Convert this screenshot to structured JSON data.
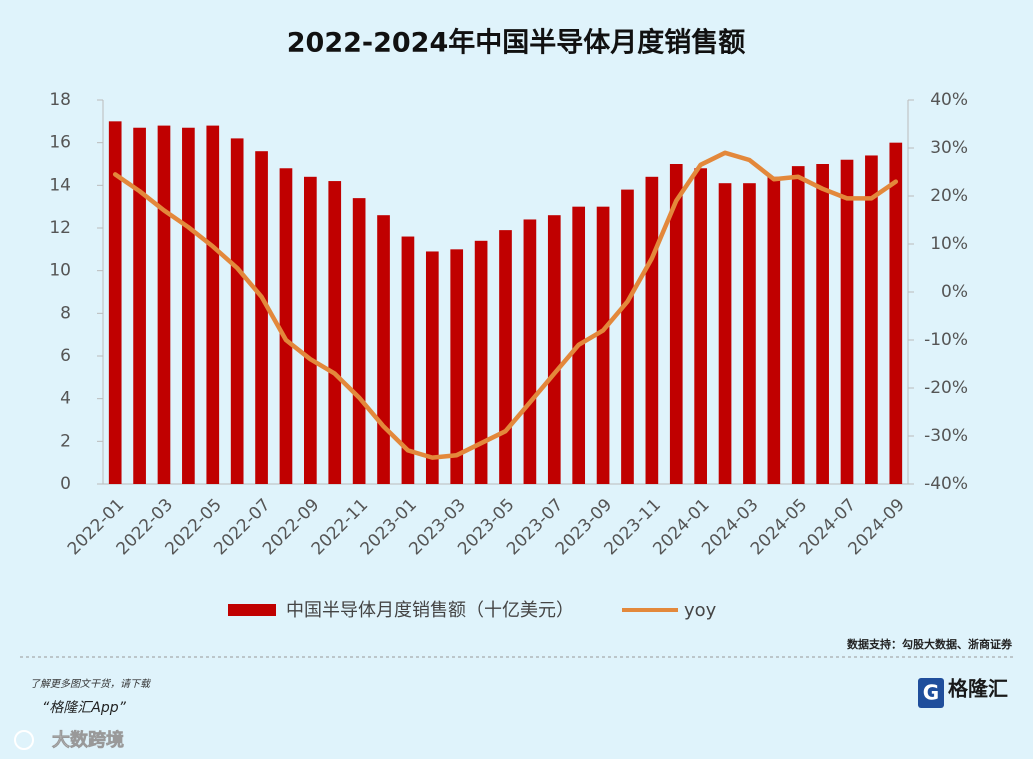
{
  "chart_data": {
    "type": "bar",
    "title": "2022-2024年中国半导体月度销售额",
    "categories": [
      "2022-01",
      null,
      "2022-03",
      null,
      "2022-05",
      null,
      "2022-07",
      null,
      "2022-09",
      null,
      "2022-11",
      null,
      "2023-01",
      null,
      "2023-03",
      null,
      "2023-05",
      null,
      "2023-07",
      null,
      "2023-09",
      null,
      "2023-11",
      null,
      "2024-01",
      null,
      "2024-03",
      null,
      "2024-05",
      null,
      "2024-07",
      null,
      "2024-09"
    ],
    "series": [
      {
        "name": "中国半导体月度销售额（十亿美元）",
        "type": "bar",
        "color": "#c00000",
        "values": [
          17.0,
          16.7,
          16.8,
          16.7,
          16.8,
          16.2,
          15.6,
          14.8,
          14.4,
          14.2,
          13.4,
          12.6,
          11.6,
          10.9,
          11.0,
          11.4,
          11.9,
          12.4,
          12.6,
          13.0,
          13.0,
          13.8,
          14.4,
          15.0,
          14.8,
          14.1,
          14.1,
          14.4,
          14.9,
          15.0,
          15.2,
          15.4,
          16.0
        ]
      },
      {
        "name": "yoy",
        "type": "line",
        "axis": "y2",
        "color": "#e3883b",
        "values": [
          24.5,
          21,
          17,
          13.5,
          9.5,
          5,
          -1,
          -10,
          -14,
          -17,
          -22,
          -28,
          -33,
          -34.5,
          -34,
          -31.5,
          -29,
          -23,
          -17,
          -11,
          -8,
          -2,
          7,
          19,
          26.5,
          29,
          27.5,
          23.5,
          24,
          21.5,
          19.5,
          19.5,
          23
        ]
      }
    ],
    "ylim": [
      0,
      18
    ],
    "yticks": [
      0,
      2,
      4,
      6,
      8,
      10,
      12,
      14,
      16,
      18
    ],
    "y2lim": [
      -40,
      40
    ],
    "y2ticks": [
      {
        "value": -40,
        "label": "-40%"
      },
      {
        "value": -30,
        "label": "-30%"
      },
      {
        "value": -20,
        "label": "-20%"
      },
      {
        "value": -10,
        "label": "-10%"
      },
      {
        "value": 0,
        "label": "0%"
      },
      {
        "value": 10,
        "label": "10%"
      },
      {
        "value": 20,
        "label": "20%"
      },
      {
        "value": 30,
        "label": "30%"
      },
      {
        "value": 40,
        "label": "40%"
      }
    ],
    "source": "数据支持：勾股大数据、浙商证券"
  },
  "footer": {
    "prompt": "了解更多图文干货，请下载",
    "app": "“格隆汇App”",
    "brand": "格隆汇",
    "watermark": "大数跨境"
  }
}
